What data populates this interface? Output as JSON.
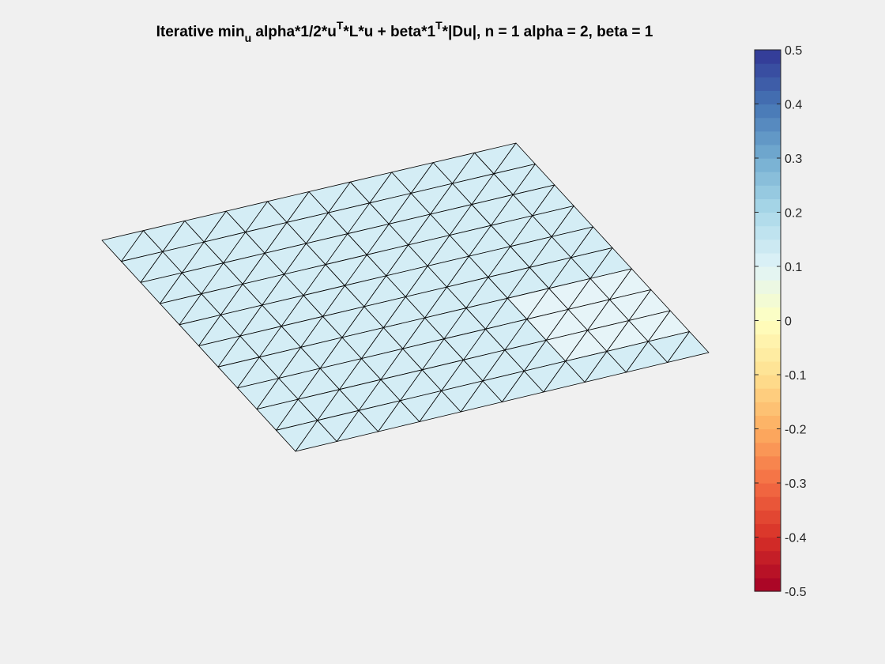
{
  "chart_data": {
    "type": "surface",
    "title": {
      "parts": [
        {
          "text": "Iterative min"
        },
        {
          "text": "u",
          "sub": true
        },
        {
          "text": " alpha*1/2*u"
        },
        {
          "text": "T",
          "sup": true
        },
        {
          "text": "*L*u + beta*1"
        },
        {
          "text": "T",
          "sup": true
        },
        {
          "text": "*|Du|,  n = 1 alpha = 2, beta = 1"
        }
      ]
    },
    "mesh": {
      "rows": 10,
      "cols": 10,
      "triangulation": "diagonal",
      "face_color": "#d4edf5",
      "light_face_color": "#e6f4f8",
      "edge_color": "#000000"
    },
    "colorbar": {
      "clim": [
        -0.5,
        0.5
      ],
      "levels": 40,
      "ticks": [
        0.5,
        0.4,
        0.3,
        0.2,
        0.1,
        0,
        -0.1,
        -0.2,
        -0.3,
        -0.4,
        -0.5
      ],
      "tick_labels": [
        "0.5",
        "0.4",
        "0.3",
        "0.2",
        "0.1",
        "0",
        "-0.1",
        "-0.2",
        "-0.3",
        "-0.4",
        "-0.5"
      ],
      "colormap": [
        "#a50026",
        "#d73027",
        "#f46d43",
        "#fdae61",
        "#fee090",
        "#ffffbf",
        "#e0f3f8",
        "#abd9e9",
        "#74add1",
        "#4575b4",
        "#313695"
      ]
    }
  }
}
